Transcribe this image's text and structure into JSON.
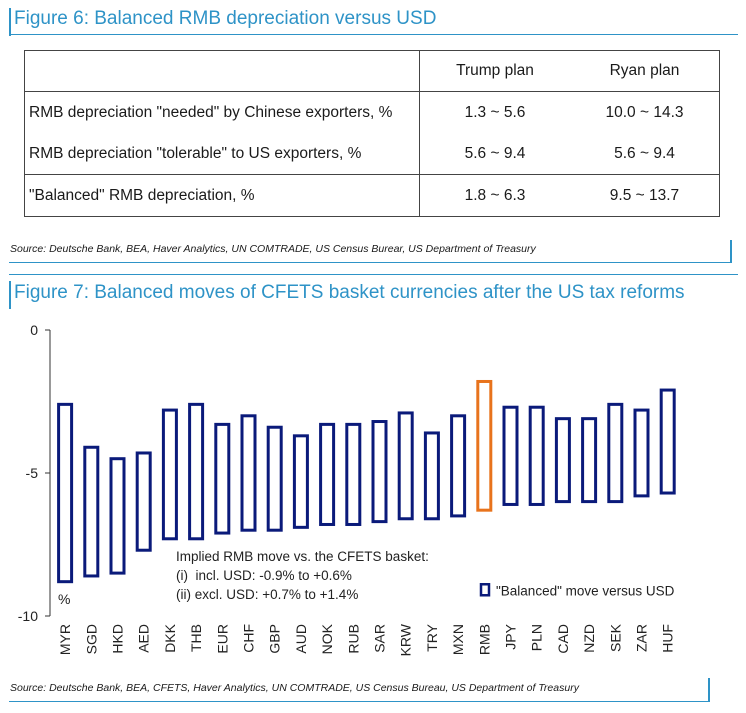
{
  "figure6": {
    "title": "Figure 6: Balanced RMB depreciation versus USD",
    "headers": [
      "",
      "Trump plan",
      "Ryan plan"
    ],
    "rows": [
      {
        "label": "RMB depreciation \"needed\" by Chinese exporters, %",
        "trump": "1.3 ~ 5.6",
        "ryan": "10.0 ~ 14.3"
      },
      {
        "label": "RMB depreciation \"tolerable\" to US exporters, %",
        "trump": "5.6 ~ 9.4",
        "ryan": "5.6 ~ 9.4"
      },
      {
        "label": "\"Balanced\" RMB depreciation, %",
        "trump": "1.8 ~ 6.3",
        "ryan": "9.5 ~ 13.7"
      }
    ],
    "source": "Source: Deutsche Bank, BEA, Haver Analytics, UN COMTRADE, US Census Burear, US Department of Treasury"
  },
  "figure7": {
    "title": "Figure 7: Balanced moves of CFETS basket currencies after the US tax reforms",
    "source": "Source: Deutsche Bank, BEA, CFETS, Haver Analytics, UN COMTRADE, US Census Bureau, US Department of Treasury"
  },
  "chart_data": {
    "type": "floating-bar",
    "ylabel": "%",
    "ylim": [
      -10,
      0
    ],
    "yticks": [
      0,
      -5,
      -10
    ],
    "categories": [
      "MYR",
      "SGD",
      "HKD",
      "AED",
      "DKK",
      "THB",
      "EUR",
      "CHF",
      "GBP",
      "AUD",
      "NOK",
      "RUB",
      "SAR",
      "KRW",
      "TRY",
      "MXN",
      "RMB",
      "JPY",
      "PLN",
      "CAD",
      "NZD",
      "SEK",
      "ZAR",
      "HUF"
    ],
    "series": [
      {
        "name": "\"Balanced\" move versus USD",
        "high": [
          -2.6,
          -4.1,
          -4.5,
          -4.3,
          -2.8,
          -2.6,
          -3.3,
          -3.0,
          -3.4,
          -3.7,
          -3.3,
          -3.3,
          -3.2,
          -2.9,
          -3.6,
          -3.0,
          -1.8,
          -2.7,
          -2.7,
          -3.1,
          -3.1,
          -2.6,
          -2.8,
          -2.1
        ],
        "low": [
          -8.8,
          -8.6,
          -8.5,
          -7.7,
          -7.3,
          -7.3,
          -7.1,
          -7.0,
          -7.0,
          -6.9,
          -6.8,
          -6.8,
          -6.7,
          -6.6,
          -6.6,
          -6.5,
          -6.3,
          -6.1,
          -6.1,
          -6.0,
          -6.0,
          -6.0,
          -5.8,
          -5.7
        ]
      }
    ],
    "highlight": "RMB",
    "colors": {
      "bar": "#0a1a7a",
      "highlight": "#e8731c"
    },
    "annotation": [
      "Implied RMB move vs. the CFETS basket:",
      "(i)  incl. USD: -0.9% to +0.6%",
      "(ii) excl. USD: +0.7% to +1.4%"
    ],
    "legend": "\"Balanced\" move versus USD"
  },
  "accent": "#2e93c7"
}
